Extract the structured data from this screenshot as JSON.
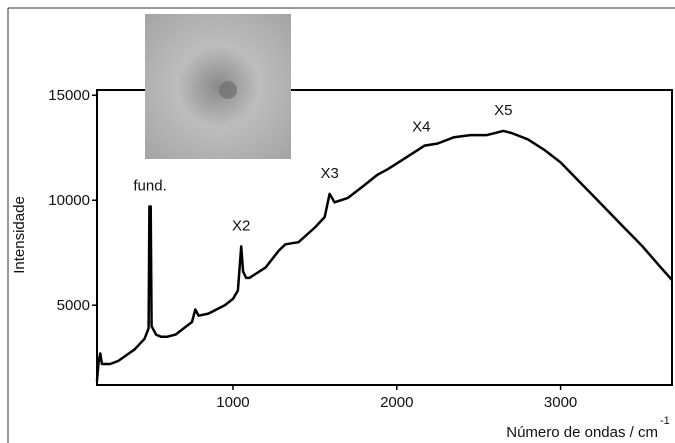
{
  "chart_data": {
    "type": "line",
    "ylabel": "Intensidade",
    "xlabel": "Número de ondas / cm",
    "xlabel_superscript": "-1",
    "color": "#000000",
    "xlim": [
      170,
      3680
    ],
    "ylim": [
      1200,
      15250
    ],
    "xticks": [
      1000,
      2000,
      3000
    ],
    "yticks": [
      5000,
      10000,
      15000
    ],
    "x": [
      170,
      180,
      190,
      200,
      250,
      300,
      400,
      460,
      485,
      490,
      498,
      503,
      530,
      560,
      600,
      650,
      700,
      750,
      770,
      790,
      850,
      950,
      1000,
      1030,
      1050,
      1062,
      1080,
      1100,
      1200,
      1280,
      1320,
      1400,
      1500,
      1560,
      1590,
      1620,
      1700,
      1800,
      1880,
      1950,
      2050,
      2130,
      2170,
      2250,
      2350,
      2450,
      2550,
      2650,
      2700,
      2800,
      2900,
      3000,
      3100,
      3200,
      3300,
      3400,
      3500,
      3600,
      3680
    ],
    "values": [
      1400,
      2300,
      2700,
      2200,
      2200,
      2350,
      2900,
      3400,
      3900,
      9700,
      9700,
      4000,
      3600,
      3500,
      3500,
      3600,
      3900,
      4200,
      4800,
      4500,
      4600,
      5000,
      5300,
      5700,
      7800,
      6600,
      6300,
      6300,
      6800,
      7600,
      7900,
      8000,
      8700,
      9200,
      10300,
      9900,
      10100,
      10700,
      11200,
      11500,
      12000,
      12400,
      12600,
      12700,
      13000,
      13100,
      13100,
      13300,
      13200,
      12900,
      12400,
      11800,
      11000,
      10200,
      9400,
      8600,
      7800,
      6900,
      6200
    ],
    "annotations": [
      {
        "text": "fund.",
        "x": 494
      },
      {
        "text": "X2",
        "x": 1050
      },
      {
        "text": "X3",
        "x": 1590
      },
      {
        "text": "X4",
        "x": 2150
      },
      {
        "text": "X5",
        "x": 2650
      }
    ]
  }
}
